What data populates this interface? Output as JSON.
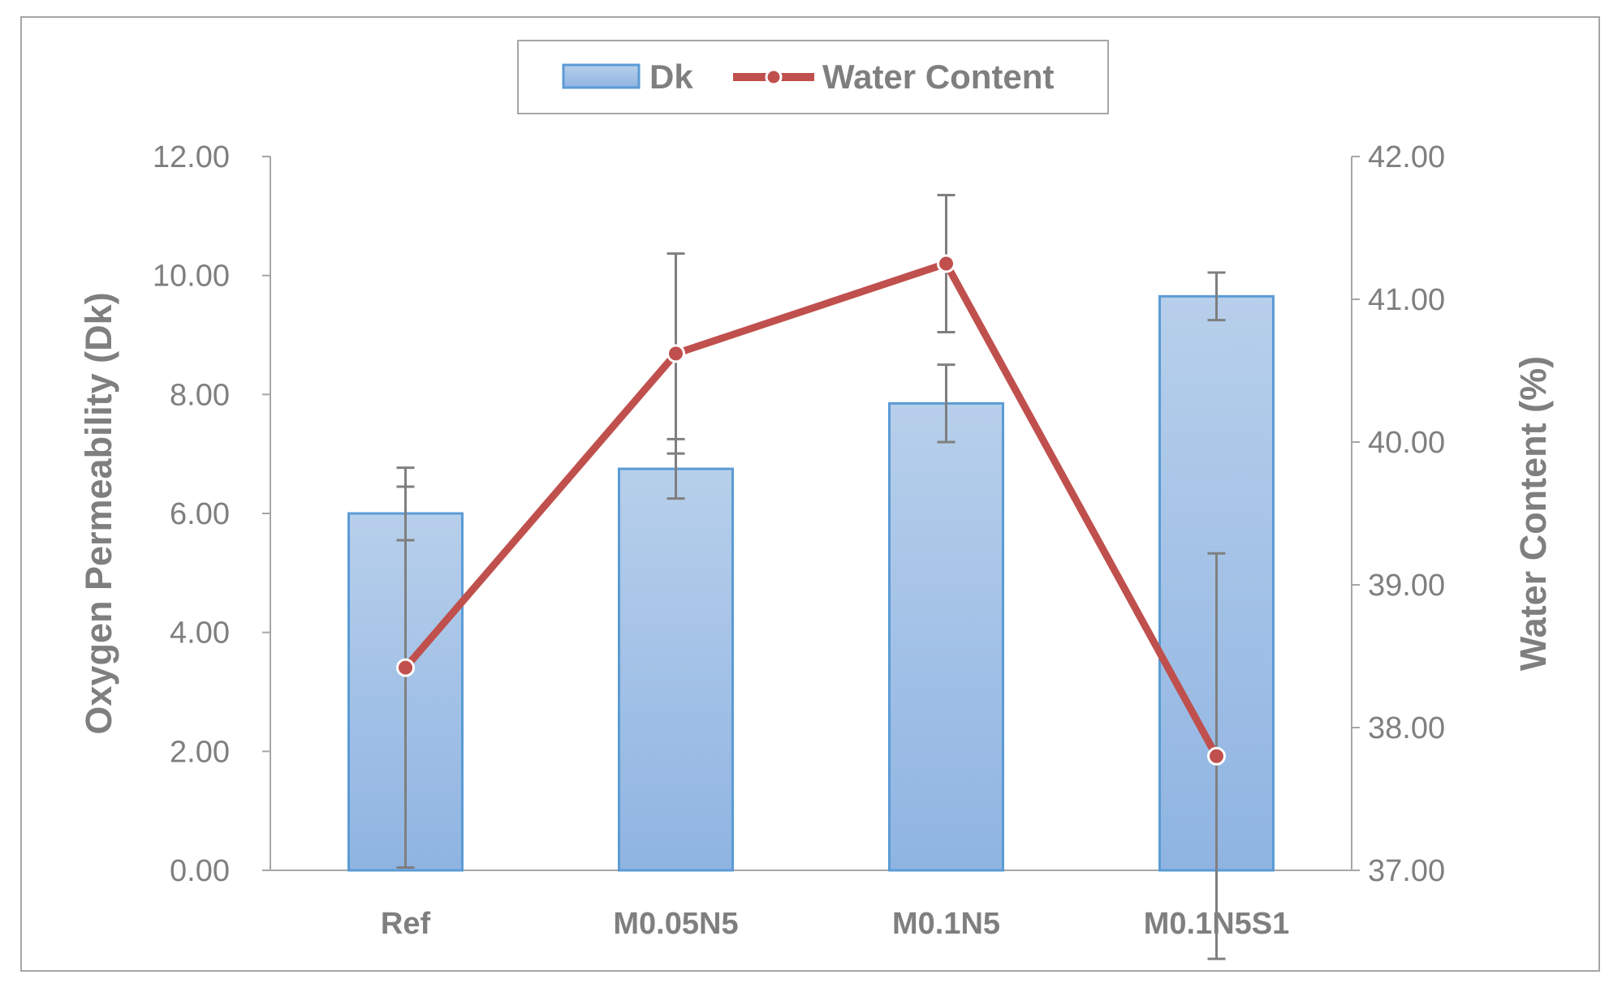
{
  "chart_data": {
    "type": "bar",
    "categories": [
      "Ref",
      "M0.05N5",
      "M0.1N5",
      "M0.1N5S1"
    ],
    "series": [
      {
        "name": "Dk",
        "type": "bar",
        "axis": "left",
        "values": [
          6.0,
          6.75,
          7.85,
          9.65
        ],
        "error": [
          0.45,
          0.5,
          0.65,
          0.4
        ]
      },
      {
        "name": "Water Content",
        "type": "line",
        "axis": "right",
        "values": [
          38.42,
          40.62,
          41.25,
          37.8
        ],
        "error": [
          1.4,
          0.7,
          0.48,
          1.42
        ]
      }
    ],
    "ylabel": "Oxygen Permeability (Dk)",
    "y2label": "Water Content (%)",
    "ylim": [
      0,
      12
    ],
    "y2lim": [
      37,
      42
    ],
    "yticks": [
      "0.00",
      "2.00",
      "4.00",
      "6.00",
      "8.00",
      "10.00",
      "12.00"
    ],
    "y2ticks": [
      "37.00",
      "38.00",
      "39.00",
      "40.00",
      "41.00",
      "42.00"
    ],
    "legend_position": "top-center",
    "grid": false
  },
  "colors": {
    "bar_fill_top": "#b7cfeb",
    "bar_fill_bottom": "#8fb4e2",
    "bar_border": "#5b9bd5",
    "line": "#c0504d",
    "error_bar": "#7f7f7f",
    "axis": "#a6a6a6",
    "text": "#7f7f7f"
  }
}
